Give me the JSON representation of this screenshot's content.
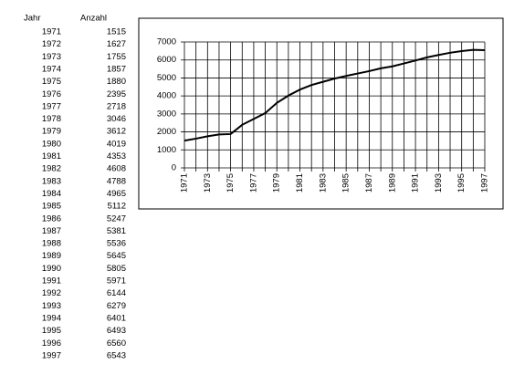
{
  "table": {
    "headers": [
      "Jahr",
      "Anzahl"
    ]
  },
  "chart_data": {
    "type": "line",
    "x": [
      1971,
      1972,
      1973,
      1974,
      1975,
      1976,
      1977,
      1978,
      1979,
      1980,
      1981,
      1982,
      1983,
      1984,
      1985,
      1986,
      1987,
      1988,
      1989,
      1990,
      1991,
      1992,
      1993,
      1994,
      1995,
      1996,
      1997
    ],
    "values": [
      1515,
      1627,
      1755,
      1857,
      1880,
      2395,
      2718,
      3046,
      3612,
      4019,
      4353,
      4608,
      4788,
      4965,
      5112,
      5247,
      5381,
      5536,
      5645,
      5805,
      5971,
      6144,
      6279,
      6401,
      6493,
      6560,
      6543
    ],
    "color": "#000000",
    "xlim": [
      1971,
      1997
    ],
    "xticks": [
      1971,
      1973,
      1975,
      1977,
      1979,
      1981,
      1983,
      1985,
      1987,
      1989,
      1991,
      1993,
      1995,
      1997
    ],
    "ylim": [
      0,
      7000
    ],
    "yticks": [
      0,
      1000,
      2000,
      3000,
      4000,
      5000,
      6000,
      7000
    ],
    "grid": true
  }
}
